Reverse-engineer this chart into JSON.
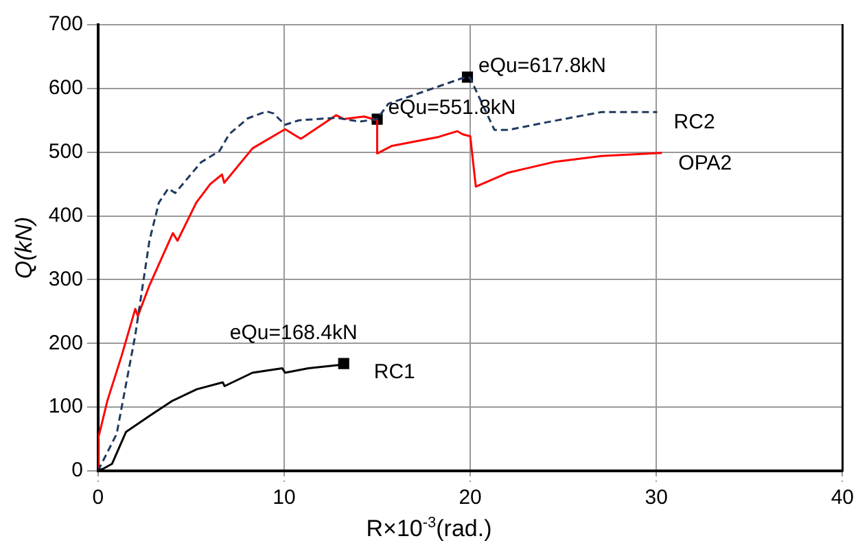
{
  "chart_data": {
    "type": "line",
    "xlabel": "R×10$^{-3}$(rad.)",
    "ylabel": "Q(kN)",
    "xlim": [
      0,
      40
    ],
    "xticks": [
      0,
      10,
      20,
      30,
      40
    ],
    "ylim": [
      0,
      700
    ],
    "yticks": [
      0,
      100,
      200,
      300,
      400,
      500,
      600,
      700
    ],
    "grid": true,
    "legend": false,
    "marker": "none",
    "series": [
      {
        "name": "RC1",
        "color": "#000000",
        "line_style": "solid",
        "x": [
          0,
          0.25,
          0.75,
          1.5,
          2.8,
          4,
          5.3,
          6.7,
          6.8,
          8.3,
          9.9,
          10.05,
          11.3,
          13.2
        ],
        "values": [
          1,
          3,
          11,
          61,
          87,
          110,
          128,
          139,
          133,
          154,
          161,
          154,
          161,
          167
        ]
      },
      {
        "name": "RC2",
        "color": "#1f3a5f",
        "line_style": "dashed",
        "x": [
          0,
          0.1,
          1,
          2,
          2.76,
          3.27,
          3.77,
          4.15,
          5.53,
          6.53,
          7.04,
          8.04,
          9.05,
          9.42,
          10.05,
          10.8,
          12.8,
          14.07,
          15,
          15.6,
          17.1,
          19.85,
          20,
          21.3,
          22.05,
          24.3,
          27.05,
          30.05
        ],
        "values": [
          0,
          6,
          58,
          213,
          361,
          421,
          443,
          436,
          484,
          502,
          528,
          553,
          564,
          561,
          543,
          550,
          554,
          548,
          552,
          576,
          591,
          619,
          616,
          535,
          535,
          548,
          563,
          563
        ]
      },
      {
        "name": "OPA2",
        "color": "#ff0000",
        "line_style": "solid",
        "x": [
          0,
          0,
          0.5,
          1.26,
          2,
          2.14,
          2.76,
          4.02,
          4.27,
          5.28,
          6.03,
          6.66,
          6.78,
          8.3,
          10.05,
          10.9,
          12.8,
          13.2,
          14.3,
          15,
          15,
          15.8,
          18.3,
          19.3,
          19.6,
          20,
          20.3,
          22.05,
          24.55,
          27.05,
          30.3
        ],
        "values": [
          0,
          50,
          110,
          180,
          254,
          243,
          291,
          373,
          361,
          421,
          450,
          465,
          452,
          506,
          536,
          521,
          558,
          552,
          556,
          550,
          498,
          510,
          524,
          533,
          528,
          525,
          446,
          468,
          485,
          494,
          499
        ]
      },
      {
        "type": "scatter",
        "color": "#000000",
        "marker": "square",
        "x": [
          13.2,
          15,
          19.85
        ],
        "values": [
          168.4,
          551.8,
          617.8
        ]
      }
    ],
    "annotations": [
      {
        "text": "eQu=168.4kN",
        "x": 13.2,
        "y": 168.4
      },
      {
        "text": "eQu=551.8kN",
        "x": 15,
        "y": 551.8
      },
      {
        "text": "eQu=617.8kN",
        "x": 19.85,
        "y": 617.8
      }
    ]
  }
}
